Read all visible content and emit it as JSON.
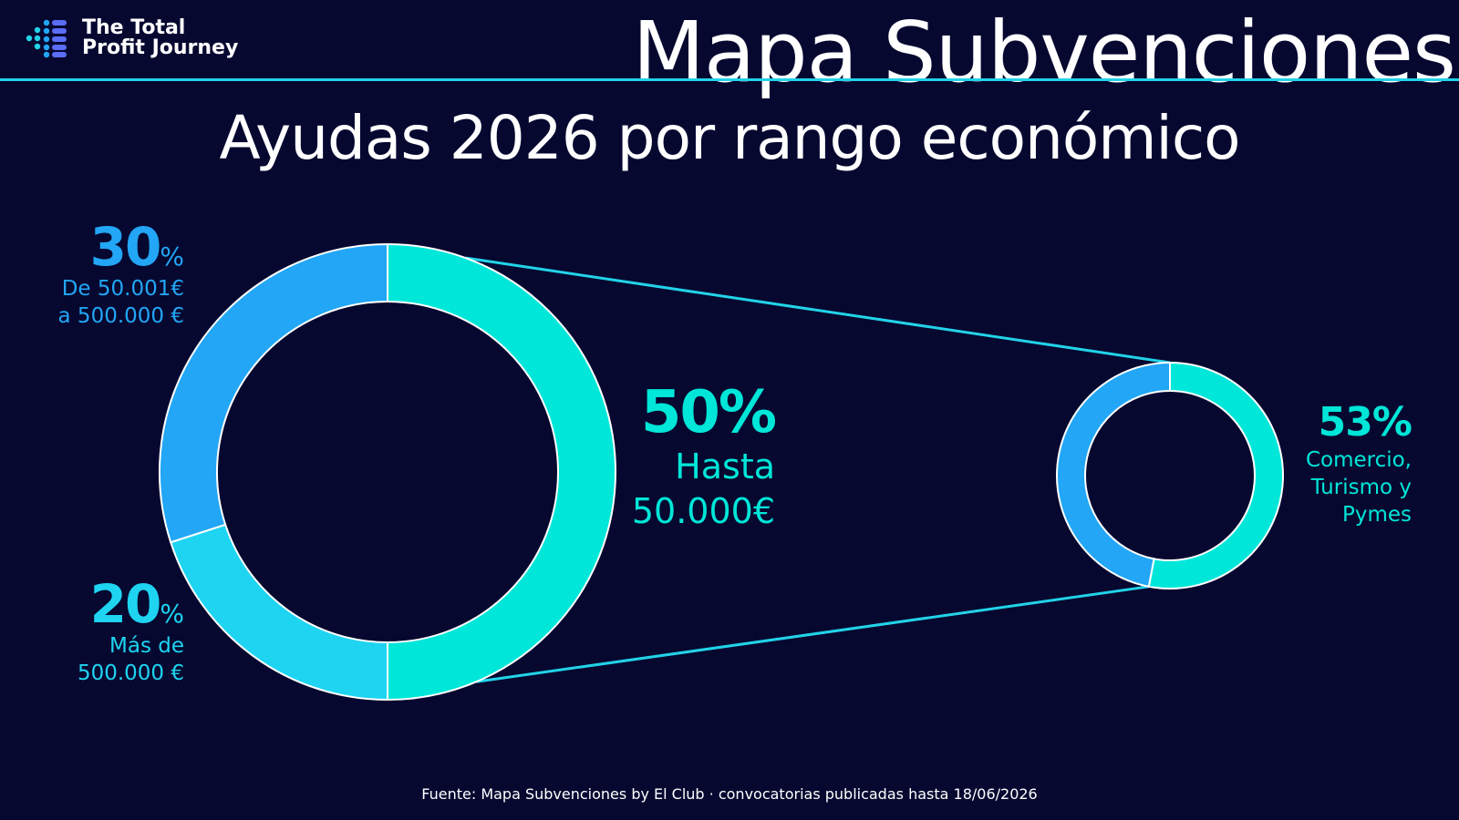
{
  "brand": {
    "name_line1": "The Total",
    "name_line2": "Profit Journey"
  },
  "header": {
    "title": "Mapa Subvenciones"
  },
  "subtitle": "Ayudas 2026 por rango económico",
  "colors": {
    "background": "#060830",
    "accent_line": "#22d3e8",
    "teal": "#00e6d8",
    "cyan": "#1ed4f1",
    "blue": "#22a6f5"
  },
  "labels": {
    "seg30": {
      "value": "30",
      "symbol": "%",
      "desc": "De 50.001€\na 500.000 €"
    },
    "seg20": {
      "value": "20",
      "symbol": "%",
      "desc": "Más de\n500.000 €"
    },
    "seg50": {
      "value": "50%",
      "desc": "Hasta\n50.000€"
    },
    "sub53": {
      "value": "53%",
      "desc": "Comercio,\nTurismo y\nPymes"
    }
  },
  "chart_data": [
    {
      "type": "pie",
      "subtype": "donut",
      "series": [
        {
          "label": "Hasta 50.000€",
          "value": 50,
          "color": "#00e6d8"
        },
        {
          "label": "Más de 500.000 €",
          "value": 20,
          "color": "#1ed4f1"
        },
        {
          "label": "De 50.001€ a 500.000 €",
          "value": 30,
          "color": "#22a6f5"
        }
      ]
    },
    {
      "type": "pie",
      "subtype": "donut",
      "breakdown_of": "Hasta 50.000€",
      "series": [
        {
          "label": "Comercio, Turismo y Pymes",
          "value": 53,
          "color": "#00e6d8"
        },
        {
          "label": "",
          "value": 47,
          "color": "#22a6f5"
        }
      ]
    }
  ],
  "source": "Fuente: Mapa Subvenciones by El Club · convocatorias publicadas hasta 18/06/2026"
}
